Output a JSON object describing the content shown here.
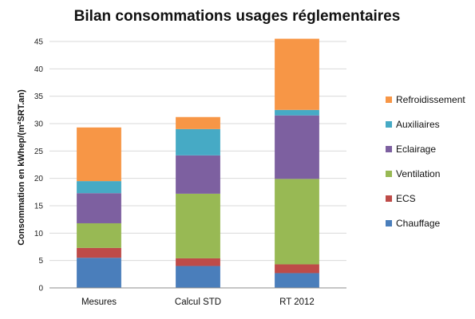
{
  "chart_data": {
    "type": "bar",
    "stacked": true,
    "title": "Bilan consommations usages réglementaires",
    "ylabel": "Consommation  en kWhep/(m²SRT.an)",
    "xlabel": "",
    "ylim": [
      0,
      45
    ],
    "yticks": [
      0,
      5,
      10,
      15,
      20,
      25,
      30,
      35,
      40,
      45
    ],
    "grid": true,
    "legend_position": "right",
    "categories": [
      "Mesures",
      "Calcul STD",
      "RT 2012"
    ],
    "series": [
      {
        "name": "Chauffage",
        "color": "#4a7ebb",
        "values": [
          5.5,
          4.0,
          2.7
        ]
      },
      {
        "name": "ECS",
        "color": "#be4b48",
        "values": [
          1.8,
          1.4,
          1.6
        ]
      },
      {
        "name": "Ventilation",
        "color": "#98b954",
        "values": [
          4.5,
          11.8,
          15.6
        ]
      },
      {
        "name": "Eclairage",
        "color": "#7d60a0",
        "values": [
          5.5,
          7.0,
          11.6
        ]
      },
      {
        "name": "Auxiliaires",
        "color": "#46aac5",
        "values": [
          2.2,
          4.8,
          1.0
        ]
      },
      {
        "name": "Refroidissement",
        "color": "#f79646",
        "values": [
          9.8,
          2.2,
          13.0
        ]
      }
    ]
  }
}
